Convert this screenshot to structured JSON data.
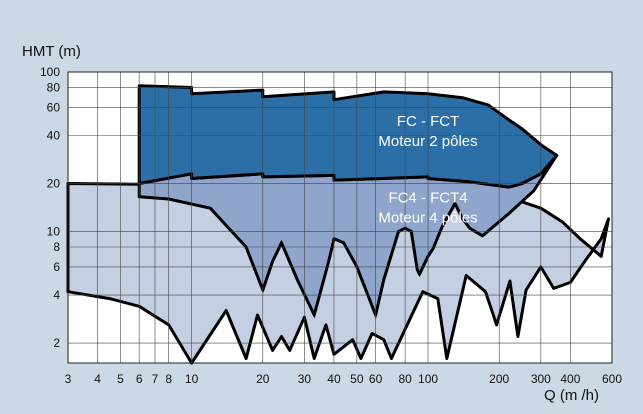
{
  "chart_data": {
    "type": "area",
    "ylabel": "HMT (m)",
    "xlabel": "Q (m /h)",
    "xscale": "log",
    "yscale": "log",
    "xlim": [
      3,
      600
    ],
    "ylim": [
      1.5,
      100
    ],
    "x_ticks": [
      3,
      4,
      5,
      6,
      7,
      8,
      10,
      20,
      30,
      40,
      50,
      60,
      80,
      100,
      200,
      300,
      400,
      600
    ],
    "x_tick_labels": [
      "3",
      "4",
      "5",
      "6",
      "7",
      "8",
      "10",
      "20",
      "30",
      "40",
      "50",
      "60",
      "80",
      "100",
      "200",
      "300",
      "400",
      "600"
    ],
    "y_ticks": [
      2,
      4,
      6,
      8,
      10,
      20,
      40,
      60,
      80,
      100
    ],
    "y_tick_labels": [
      "2",
      "4",
      "6",
      "8",
      "10",
      "20",
      "40",
      "60",
      "80",
      "100"
    ],
    "grid": true,
    "colors": {
      "background": "#cbd8e6",
      "plot_bg": "#ffffff",
      "grid": "#444444",
      "region_2_poles": "#2c6fa6",
      "region_4_poles": "#8fa5cc",
      "region_all": "#c5cfe2",
      "outline": "#000000"
    },
    "regions": [
      {
        "label_line1": "FC - FCT",
        "label_line2": "Moteur 2 pôles",
        "color": "#2c6fa6",
        "boundary": [
          [
            6,
            82
          ],
          [
            6,
            82
          ],
          [
            10,
            80
          ],
          [
            10,
            73
          ],
          [
            20,
            77
          ],
          [
            20,
            70
          ],
          [
            40,
            75
          ],
          [
            40,
            67
          ],
          [
            65,
            75
          ],
          [
            100,
            73
          ],
          [
            140,
            69
          ],
          [
            180,
            62
          ],
          [
            220,
            50
          ],
          [
            250,
            44
          ],
          [
            300,
            35
          ],
          [
            350,
            30
          ],
          [
            300,
            23
          ],
          [
            250,
            20
          ],
          [
            220,
            19
          ],
          [
            150,
            20.5
          ],
          [
            100,
            21.5
          ],
          [
            100,
            22
          ],
          [
            40,
            21
          ],
          [
            40,
            22.5
          ],
          [
            20,
            22
          ],
          [
            20,
            23
          ],
          [
            10,
            21.5
          ],
          [
            10,
            23
          ],
          [
            6,
            20
          ]
        ]
      },
      {
        "label_line1": "FC4 - FCT4",
        "label_line2": "Moteur 4 pôles",
        "color": "#8fa5cc",
        "boundary": [
          [
            6,
            20
          ],
          [
            10,
            23
          ],
          [
            10,
            21.5
          ],
          [
            20,
            23
          ],
          [
            20,
            22
          ],
          [
            40,
            22.5
          ],
          [
            40,
            21
          ],
          [
            100,
            22
          ],
          [
            100,
            21.5
          ],
          [
            150,
            20.5
          ],
          [
            220,
            19
          ],
          [
            250,
            20
          ],
          [
            300,
            23
          ],
          [
            350,
            30
          ],
          [
            280,
            18
          ],
          [
            220,
            13
          ],
          [
            170,
            9.4
          ],
          [
            150,
            10.5
          ],
          [
            140,
            12
          ],
          [
            130,
            15
          ],
          [
            115,
            10.8
          ],
          [
            105,
            7.8
          ],
          [
            100,
            7
          ],
          [
            92,
            5.4
          ],
          [
            90,
            5.8
          ],
          [
            85,
            10
          ],
          [
            80,
            10.5
          ],
          [
            75,
            10
          ],
          [
            65,
            5
          ],
          [
            60,
            3
          ],
          [
            50,
            6
          ],
          [
            44,
            8.5
          ],
          [
            40,
            9
          ],
          [
            38,
            6.5
          ],
          [
            33,
            3
          ],
          [
            28,
            5
          ],
          [
            24,
            8.5
          ],
          [
            22,
            6.5
          ],
          [
            20,
            4.3
          ],
          [
            17,
            8
          ],
          [
            12,
            14
          ],
          [
            8,
            16
          ],
          [
            6,
            16.5
          ]
        ]
      },
      {
        "color": "#c5cfe2",
        "boundary": [
          [
            3,
            20
          ],
          [
            15,
            19.5
          ],
          [
            25,
            19
          ],
          [
            60,
            18
          ],
          [
            150,
            17
          ],
          [
            230,
            16
          ],
          [
            300,
            14
          ],
          [
            370,
            11.5
          ],
          [
            440,
            9
          ],
          [
            540,
            7
          ],
          [
            580,
            12
          ],
          [
            540,
            9
          ],
          [
            460,
            6.5
          ],
          [
            400,
            4.8
          ],
          [
            340,
            4.4
          ],
          [
            300,
            6
          ],
          [
            260,
            4.3
          ],
          [
            240,
            2.2
          ],
          [
            222,
            4.9
          ],
          [
            195,
            2.6
          ],
          [
            175,
            4.2
          ],
          [
            145,
            5.3
          ],
          [
            120,
            1.6
          ],
          [
            110,
            3.8
          ],
          [
            95,
            4.2
          ],
          [
            70,
            1.6
          ],
          [
            65,
            2.1
          ],
          [
            58,
            2.3
          ],
          [
            52,
            1.6
          ],
          [
            48,
            2.1
          ],
          [
            40,
            1.7
          ],
          [
            37,
            2.6
          ],
          [
            33,
            1.6
          ],
          [
            30,
            2.9
          ],
          [
            26,
            1.8
          ],
          [
            24,
            2.2
          ],
          [
            22,
            1.8
          ],
          [
            19,
            3.0
          ],
          [
            17,
            1.6
          ],
          [
            14,
            3.2
          ],
          [
            10,
            1.5
          ],
          [
            8,
            2.6
          ],
          [
            6,
            3.4
          ],
          [
            4.5,
            3.8
          ],
          [
            3,
            4.2
          ]
        ]
      }
    ],
    "dashed_curve": [
      [
        6,
        16.5
      ],
      [
        8,
        16
      ],
      [
        12,
        14
      ],
      [
        17,
        8
      ],
      [
        20,
        4.3
      ],
      [
        22,
        6.5
      ],
      [
        24,
        8.5
      ],
      [
        28,
        5
      ],
      [
        33,
        3
      ],
      [
        38,
        6.5
      ],
      [
        40,
        9
      ],
      [
        44,
        8.5
      ],
      [
        50,
        6
      ],
      [
        60,
        3
      ],
      [
        65,
        5
      ],
      [
        75,
        10
      ],
      [
        80,
        10.5
      ],
      [
        85,
        10
      ],
      [
        90,
        5.8
      ],
      [
        92,
        5.4
      ],
      [
        100,
        7
      ],
      [
        105,
        7.8
      ],
      [
        115,
        10.8
      ],
      [
        130,
        15
      ],
      [
        140,
        12
      ],
      [
        150,
        10.5
      ],
      [
        170,
        9.4
      ],
      [
        220,
        13
      ],
      [
        280,
        18
      ],
      [
        350,
        30
      ]
    ]
  }
}
